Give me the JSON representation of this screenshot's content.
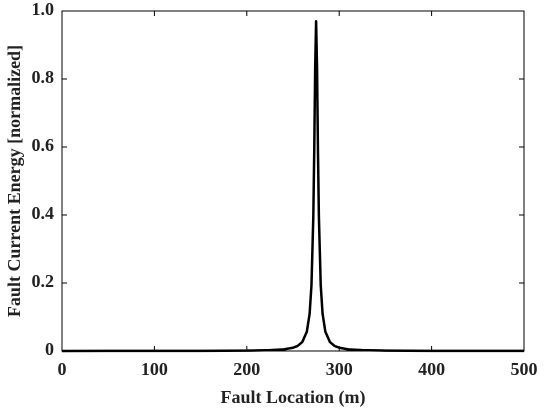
{
  "chart_data": {
    "type": "line",
    "xlabel": "Fault Location (m)",
    "ylabel": "Fault Current Energy [normalized]",
    "x": [
      0,
      50,
      100,
      150,
      200,
      225,
      240,
      250,
      255,
      260,
      265,
      268,
      270,
      272,
      273,
      274,
      275,
      276,
      277,
      278,
      280,
      282,
      285,
      290,
      295,
      300,
      310,
      325,
      350,
      400,
      450,
      500
    ],
    "series": [
      {
        "color": "#000000",
        "values": [
          0.0001,
          0.0002,
          0.0003,
          0.0004,
          0.0011,
          0.0024,
          0.0049,
          0.0096,
          0.0149,
          0.0262,
          0.0571,
          0.1097,
          0.194,
          0.3975,
          0.5915,
          0.836,
          0.97,
          0.836,
          0.5915,
          0.3975,
          0.194,
          0.1097,
          0.0571,
          0.0262,
          0.0149,
          0.0096,
          0.0049,
          0.0024,
          0.0011,
          0.0004,
          0.0003,
          0.0002
        ]
      }
    ],
    "xlim": [
      0,
      500
    ],
    "xticks": [
      0,
      100,
      200,
      300,
      400,
      500
    ],
    "ylim": [
      0,
      1
    ],
    "yticks": [
      0,
      0.2,
      0.4,
      0.6,
      0.8,
      {
        "value": 1,
        "label": "1.0"
      }
    ]
  }
}
